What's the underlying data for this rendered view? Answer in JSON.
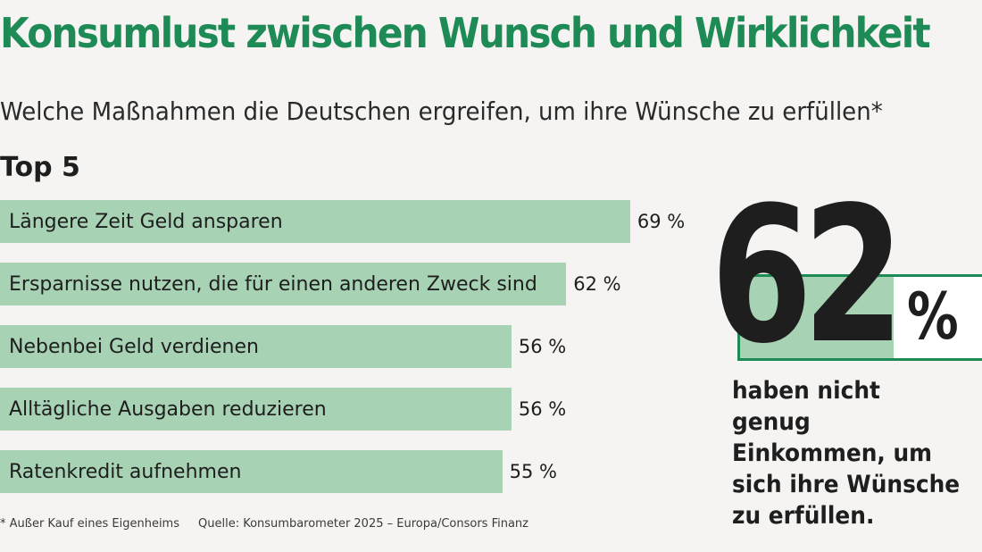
{
  "header": {
    "title": "Konsumlust zwischen Wunsch und Wirklichkeit",
    "subtitle": "Welche Maßnahmen die Deutschen ergreifen, um ihre Wünsche zu erfüllen*",
    "section_label": "Top 5"
  },
  "colors": {
    "title": "#1e8a55",
    "bar": "#a7d2b4",
    "highlight": "#a7d2b4",
    "box_border": "#1e8a55",
    "text": "#1e1e1e"
  },
  "chart_data": {
    "type": "bar",
    "orientation": "horizontal",
    "categories": [
      "Längere Zeit Geld ansparen",
      "Ersparnisse nutzen, die für einen anderen Zweck sind",
      "Nebenbei Geld verdienen",
      "Alltägliche Ausgaben reduzieren",
      "Ratenkredit aufnehmen"
    ],
    "values": [
      69,
      62,
      56,
      56,
      55
    ],
    "value_labels": [
      "69 %",
      "62 %",
      "56 %",
      "56 %",
      "55 %"
    ],
    "unit": "%",
    "xlim": [
      0,
      100
    ]
  },
  "highlight": {
    "number": "62",
    "percent_sign": "%",
    "caption": "haben nicht genug Einkommen, um sich ihre Wünsche zu erfüllen."
  },
  "footer": {
    "footnote": "* Außer Kauf eines Eigenheims",
    "source": "Quelle: Konsumbarometer 2025 – Europa/Consors Finanz"
  }
}
